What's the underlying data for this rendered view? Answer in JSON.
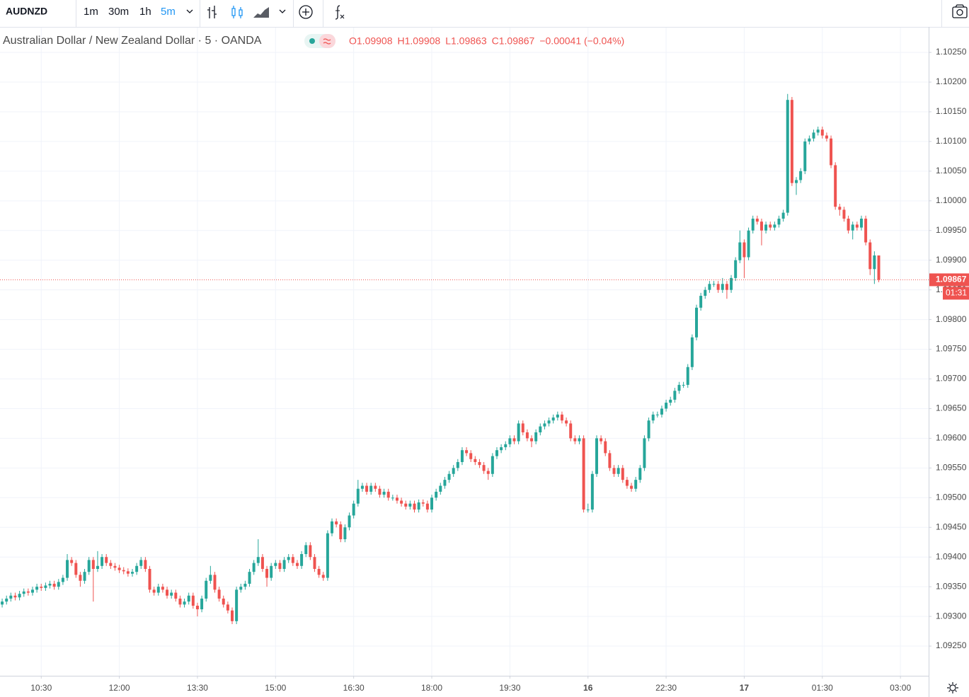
{
  "toolbar": {
    "symbol": "AUDNZD",
    "intervals": [
      "1m",
      "30m",
      "1h",
      "5m"
    ],
    "active_interval": 3
  },
  "chart_data": {
    "type": "candlestick",
    "title": "Australian Dollar / New Zealand Dollar · 5 · OANDA",
    "ohlc_legend": [
      "O1.09908",
      "H1.09908",
      "L1.09863",
      "C1.09867",
      "−0.00041 (−0.04%)"
    ],
    "up_color": "#26a69a",
    "down_color": "#ef5350",
    "grid": true,
    "xlim": [
      -0.5,
      213.5
    ],
    "xticks": [
      {
        "value": 9,
        "label": "10:30"
      },
      {
        "value": 27,
        "label": "12:00"
      },
      {
        "value": 45,
        "label": "13:30"
      },
      {
        "value": 63,
        "label": "15:00"
      },
      {
        "value": 81,
        "label": "16:30"
      },
      {
        "value": 99,
        "label": "18:00"
      },
      {
        "value": 117,
        "label": "19:30"
      },
      {
        "value": 135,
        "label": "16"
      },
      {
        "value": 153,
        "label": "22:30"
      },
      {
        "value": 171,
        "label": "17"
      },
      {
        "value": 189,
        "label": "01:30"
      },
      {
        "value": 207,
        "label": "03:00"
      }
    ],
    "ylim": [
      1.092,
      1.10293
    ],
    "yticks": [
      {
        "value": 1.0925,
        "label": "1.09250"
      },
      {
        "value": 1.093,
        "label": "1.09300"
      },
      {
        "value": 1.0935,
        "label": "1.09350"
      },
      {
        "value": 1.094,
        "label": "1.09400"
      },
      {
        "value": 1.0945,
        "label": "1.09450"
      },
      {
        "value": 1.095,
        "label": "1.09500"
      },
      {
        "value": 1.0955,
        "label": "1.09550"
      },
      {
        "value": 1.096,
        "label": "1.09600"
      },
      {
        "value": 1.0965,
        "label": "1.09650"
      },
      {
        "value": 1.097,
        "label": "1.09700"
      },
      {
        "value": 1.0975,
        "label": "1.09750"
      },
      {
        "value": 1.098,
        "label": "1.09800"
      },
      {
        "value": 1.0985,
        "label": "1.09850"
      },
      {
        "value": 1.099,
        "label": "1.09900"
      },
      {
        "value": 1.0995,
        "label": "1.09950"
      },
      {
        "value": 1.1,
        "label": "1.10000"
      },
      {
        "value": 1.1005,
        "label": "1.10050"
      },
      {
        "value": 1.101,
        "label": "1.10100"
      },
      {
        "value": 1.1015,
        "label": "1.10150"
      },
      {
        "value": 1.102,
        "label": "1.10200"
      },
      {
        "value": 1.1025,
        "label": "1.10250"
      }
    ],
    "last_price": {
      "value": 1.09867,
      "label": "1.09867"
    },
    "countdown": "01:31",
    "open": [
      1.0932,
      1.09325,
      1.0933,
      1.09335,
      1.09332,
      1.09338,
      1.09342,
      1.0934,
      1.09345,
      1.0935,
      1.09348,
      1.09352,
      1.09355,
      1.0935,
      1.09358,
      1.09365,
      1.09395,
      1.0939,
      1.0937,
      1.0936,
      1.09375,
      1.09395,
      1.0938,
      1.09385,
      1.094,
      1.0939,
      1.09385,
      1.09382,
      1.09378,
      1.09376,
      1.09372,
      1.09375,
      1.09385,
      1.09395,
      1.0938,
      1.09345,
      1.0934,
      1.0935,
      1.09345,
      1.09335,
      1.0934,
      1.0933,
      1.0932,
      1.09325,
      1.09335,
      1.09318,
      1.09312,
      1.0933,
      1.0936,
      1.0937,
      1.09345,
      1.0933,
      1.0932,
      1.0931,
      1.09292,
      1.09345,
      1.0935,
      1.09355,
      1.09375,
      1.0939,
      1.094,
      1.0938,
      1.09365,
      1.09385,
      1.0939,
      1.0938,
      1.09395,
      1.094,
      1.0939,
      1.09385,
      1.09405,
      1.0942,
      1.094,
      1.0938,
      1.0937,
      1.09365,
      1.0944,
      1.0946,
      1.09455,
      1.0943,
      1.0945,
      1.0947,
      1.0949,
      1.09515,
      1.0952,
      1.0951,
      1.0952,
      1.09515,
      1.09505,
      1.0951,
      1.095,
      1.095,
      1.09495,
      1.0949,
      1.09485,
      1.0949,
      1.0948,
      1.09492,
      1.0949,
      1.0948,
      1.095,
      1.0951,
      1.0952,
      1.0953,
      1.0954,
      1.0955,
      1.0956,
      1.0958,
      1.09575,
      1.09565,
      1.0956,
      1.09555,
      1.09545,
      1.0954,
      1.0957,
      1.0958,
      1.09585,
      1.0959,
      1.096,
      1.09595,
      1.09625,
      1.0961,
      1.096,
      1.09595,
      1.0961,
      1.0962,
      1.09625,
      1.0963,
      1.09635,
      1.0964,
      1.0963,
      1.09625,
      1.096,
      1.09595,
      1.096,
      1.0948,
      1.0948,
      1.0954,
      1.096,
      1.09595,
      1.09575,
      1.0955,
      1.0954,
      1.0955,
      1.0953,
      1.0952,
      1.09515,
      1.0953,
      1.0955,
      1.096,
      1.0963,
      1.0964,
      1.0964,
      1.0965,
      1.0966,
      1.09665,
      1.0968,
      1.0969,
      1.0969,
      1.0972,
      1.0977,
      1.0982,
      1.0984,
      1.0985,
      1.0986,
      1.0986,
      1.0985,
      1.0986,
      1.0985,
      1.0987,
      1.099,
      1.0993,
      1.09905,
      1.0995,
      1.0997,
      1.09965,
      1.0995,
      1.0996,
      1.09955,
      1.0996,
      1.0997,
      1.0998,
      1.1017,
      1.1003,
      1.10035,
      1.1005,
      1.101,
      1.10105,
      1.10115,
      1.1012,
      1.1011,
      1.10105,
      1.1006,
      1.0999,
      1.09985,
      1.0997,
      1.0995,
      1.0996,
      1.09955,
      1.0997,
      1.0993,
      1.09885,
      1.09908
    ],
    "high": [
      1.0933,
      1.09335,
      1.0934,
      1.0934,
      1.09343,
      1.09347,
      1.09347,
      1.0935,
      1.09355,
      1.09355,
      1.09357,
      1.0936,
      1.0936,
      1.09363,
      1.0937,
      1.09405,
      1.094,
      1.09395,
      1.09375,
      1.0938,
      1.094,
      1.094,
      1.0941,
      1.09405,
      1.09405,
      1.09395,
      1.0939,
      1.09387,
      1.09383,
      1.09381,
      1.0938,
      1.0939,
      1.094,
      1.094,
      1.09385,
      1.0935,
      1.09355,
      1.09355,
      1.0935,
      1.09345,
      1.09345,
      1.09335,
      1.0933,
      1.0934,
      1.0934,
      1.09323,
      1.09335,
      1.09365,
      1.09385,
      1.09375,
      1.0935,
      1.09335,
      1.09325,
      1.09315,
      1.0935,
      1.09355,
      1.0936,
      1.0938,
      1.09395,
      1.0943,
      1.09405,
      1.09385,
      1.0939,
      1.09395,
      1.09395,
      1.094,
      1.09405,
      1.09405,
      1.09395,
      1.0941,
      1.09425,
      1.09425,
      1.09405,
      1.09385,
      1.09375,
      1.09445,
      1.09465,
      1.09465,
      1.0946,
      1.09455,
      1.09475,
      1.09495,
      1.0953,
      1.09525,
      1.09525,
      1.09525,
      1.09525,
      1.0952,
      1.09515,
      1.09515,
      1.09505,
      1.09505,
      1.095,
      1.09495,
      1.09495,
      1.09495,
      1.09497,
      1.09497,
      1.09495,
      1.09505,
      1.09515,
      1.09525,
      1.09535,
      1.09545,
      1.09555,
      1.09565,
      1.09585,
      1.09585,
      1.0958,
      1.0957,
      1.09565,
      1.0956,
      1.0955,
      1.09575,
      1.09585,
      1.0959,
      1.09595,
      1.09605,
      1.09605,
      1.0963,
      1.0963,
      1.09615,
      1.09605,
      1.09615,
      1.09625,
      1.0963,
      1.09635,
      1.0964,
      1.09645,
      1.09645,
      1.09635,
      1.0963,
      1.09605,
      1.09605,
      1.09605,
      1.0949,
      1.09545,
      1.09605,
      1.09605,
      1.096,
      1.0958,
      1.09555,
      1.09555,
      1.09555,
      1.09535,
      1.09525,
      1.09535,
      1.09555,
      1.09605,
      1.09635,
      1.09645,
      1.09645,
      1.09655,
      1.09665,
      1.0967,
      1.09685,
      1.09695,
      1.09695,
      1.09725,
      1.09775,
      1.09825,
      1.09845,
      1.09855,
      1.09865,
      1.09865,
      1.09865,
      1.0987,
      1.09865,
      1.09875,
      1.09905,
      1.0995,
      1.09935,
      1.09955,
      1.09975,
      1.09975,
      1.0997,
      1.09965,
      1.09965,
      1.09965,
      1.09975,
      1.09985,
      1.1018,
      1.10175,
      1.1004,
      1.10055,
      1.10105,
      1.1011,
      1.1012,
      1.10125,
      1.10125,
      1.10115,
      1.1011,
      1.10065,
      1.09995,
      1.0999,
      1.09975,
      1.09965,
      1.09965,
      1.09975,
      1.09975,
      1.09935,
      1.09915,
      1.09908
    ],
    "low": [
      1.09315,
      1.0932,
      1.09325,
      1.09327,
      1.09327,
      1.09333,
      1.09335,
      1.09335,
      1.0934,
      1.09343,
      1.09343,
      1.09347,
      1.09345,
      1.09345,
      1.09353,
      1.0936,
      1.09385,
      1.09365,
      1.0935,
      1.09355,
      1.0937,
      1.09325,
      1.09375,
      1.0938,
      1.09385,
      1.0938,
      1.09377,
      1.09373,
      1.09371,
      1.09367,
      1.09367,
      1.0937,
      1.0938,
      1.09375,
      1.0934,
      1.09335,
      1.09335,
      1.0934,
      1.0933,
      1.0933,
      1.09325,
      1.09315,
      1.09315,
      1.0932,
      1.09313,
      1.093,
      1.09307,
      1.09325,
      1.09355,
      1.0934,
      1.09325,
      1.09315,
      1.09305,
      1.09287,
      1.09287,
      1.0934,
      1.09345,
      1.0935,
      1.0937,
      1.09385,
      1.09375,
      1.0935,
      1.0936,
      1.0938,
      1.09375,
      1.09375,
      1.0939,
      1.09385,
      1.0938,
      1.0938,
      1.094,
      1.09395,
      1.09375,
      1.09365,
      1.0936,
      1.0936,
      1.09435,
      1.0945,
      1.09425,
      1.09425,
      1.09445,
      1.09465,
      1.09485,
      1.0951,
      1.09505,
      1.09505,
      1.0951,
      1.095,
      1.095,
      1.09495,
      1.09495,
      1.0949,
      1.09485,
      1.0948,
      1.0948,
      1.09475,
      1.09475,
      1.09485,
      1.09475,
      1.09475,
      1.09495,
      1.09505,
      1.09515,
      1.09525,
      1.09535,
      1.09545,
      1.09555,
      1.0957,
      1.0956,
      1.09555,
      1.0955,
      1.0954,
      1.0953,
      1.09535,
      1.09565,
      1.09575,
      1.0958,
      1.09585,
      1.0959,
      1.0959,
      1.09605,
      1.09595,
      1.09585,
      1.0959,
      1.09605,
      1.09615,
      1.0962,
      1.09625,
      1.0963,
      1.09625,
      1.0962,
      1.09595,
      1.0959,
      1.0959,
      1.09475,
      1.09475,
      1.09475,
      1.09535,
      1.0959,
      1.0957,
      1.09545,
      1.09535,
      1.09535,
      1.09525,
      1.09515,
      1.0951,
      1.0951,
      1.09525,
      1.09545,
      1.09595,
      1.09625,
      1.09635,
      1.09635,
      1.09645,
      1.09655,
      1.0966,
      1.09675,
      1.09685,
      1.09685,
      1.09715,
      1.09765,
      1.09815,
      1.09835,
      1.09845,
      1.09855,
      1.09845,
      1.09845,
      1.09835,
      1.09845,
      1.09865,
      1.09895,
      1.0987,
      1.099,
      1.09945,
      1.0996,
      1.09925,
      1.09945,
      1.0995,
      1.0995,
      1.09955,
      1.09965,
      1.09975,
      1.10025,
      1.1001,
      1.1003,
      1.10045,
      1.10095,
      1.101,
      1.1011,
      1.10105,
      1.101,
      1.10055,
      1.09985,
      1.09975,
      1.09965,
      1.09945,
      1.09935,
      1.0995,
      1.0995,
      1.09925,
      1.09875,
      1.0986,
      1.09863
    ],
    "close": [
      1.09325,
      1.0933,
      1.09335,
      1.09332,
      1.09338,
      1.09342,
      1.0934,
      1.09345,
      1.0935,
      1.09348,
      1.09352,
      1.09355,
      1.0935,
      1.09358,
      1.09365,
      1.09395,
      1.0939,
      1.0937,
      1.0936,
      1.09375,
      1.09395,
      1.0938,
      1.09385,
      1.094,
      1.0939,
      1.09385,
      1.09382,
      1.09378,
      1.09376,
      1.09372,
      1.09375,
      1.09385,
      1.09395,
      1.0938,
      1.09345,
      1.0934,
      1.0935,
      1.09345,
      1.09335,
      1.0934,
      1.0933,
      1.0932,
      1.09325,
      1.09335,
      1.09318,
      1.09312,
      1.0933,
      1.0936,
      1.0937,
      1.09345,
      1.0933,
      1.0932,
      1.0931,
      1.09292,
      1.09345,
      1.0935,
      1.09355,
      1.09375,
      1.0939,
      1.094,
      1.0938,
      1.09365,
      1.09385,
      1.0939,
      1.0938,
      1.09395,
      1.094,
      1.0939,
      1.09385,
      1.09405,
      1.0942,
      1.094,
      1.0938,
      1.0937,
      1.09365,
      1.0944,
      1.0946,
      1.09455,
      1.0943,
      1.0945,
      1.0947,
      1.0949,
      1.09515,
      1.0952,
      1.0951,
      1.0952,
      1.09515,
      1.09505,
      1.0951,
      1.095,
      1.095,
      1.09495,
      1.0949,
      1.09485,
      1.0949,
      1.0948,
      1.09492,
      1.0949,
      1.0948,
      1.095,
      1.0951,
      1.0952,
      1.0953,
      1.0954,
      1.0955,
      1.0956,
      1.0958,
      1.09575,
      1.09565,
      1.0956,
      1.09555,
      1.09545,
      1.0954,
      1.0957,
      1.0958,
      1.09585,
      1.0959,
      1.096,
      1.09595,
      1.09625,
      1.0961,
      1.096,
      1.09595,
      1.0961,
      1.0962,
      1.09625,
      1.0963,
      1.09635,
      1.0964,
      1.0963,
      1.09625,
      1.096,
      1.09595,
      1.096,
      1.0948,
      1.0948,
      1.0954,
      1.096,
      1.09595,
      1.09575,
      1.0955,
      1.0954,
      1.0955,
      1.0953,
      1.0952,
      1.09515,
      1.0953,
      1.0955,
      1.096,
      1.0963,
      1.0964,
      1.0964,
      1.0965,
      1.0966,
      1.09665,
      1.0968,
      1.0969,
      1.0969,
      1.0972,
      1.0977,
      1.0982,
      1.0984,
      1.0985,
      1.0986,
      1.0986,
      1.0985,
      1.0986,
      1.0985,
      1.0987,
      1.099,
      1.0993,
      1.09905,
      1.0995,
      1.0997,
      1.09965,
      1.0995,
      1.0996,
      1.09955,
      1.0996,
      1.0997,
      1.0998,
      1.1017,
      1.1003,
      1.10035,
      1.1005,
      1.101,
      1.10105,
      1.10115,
      1.1012,
      1.1011,
      1.10105,
      1.1006,
      1.0999,
      1.09985,
      1.0997,
      1.0995,
      1.0996,
      1.09955,
      1.0997,
      1.0993,
      1.09885,
      1.09908,
      1.09867
    ]
  }
}
